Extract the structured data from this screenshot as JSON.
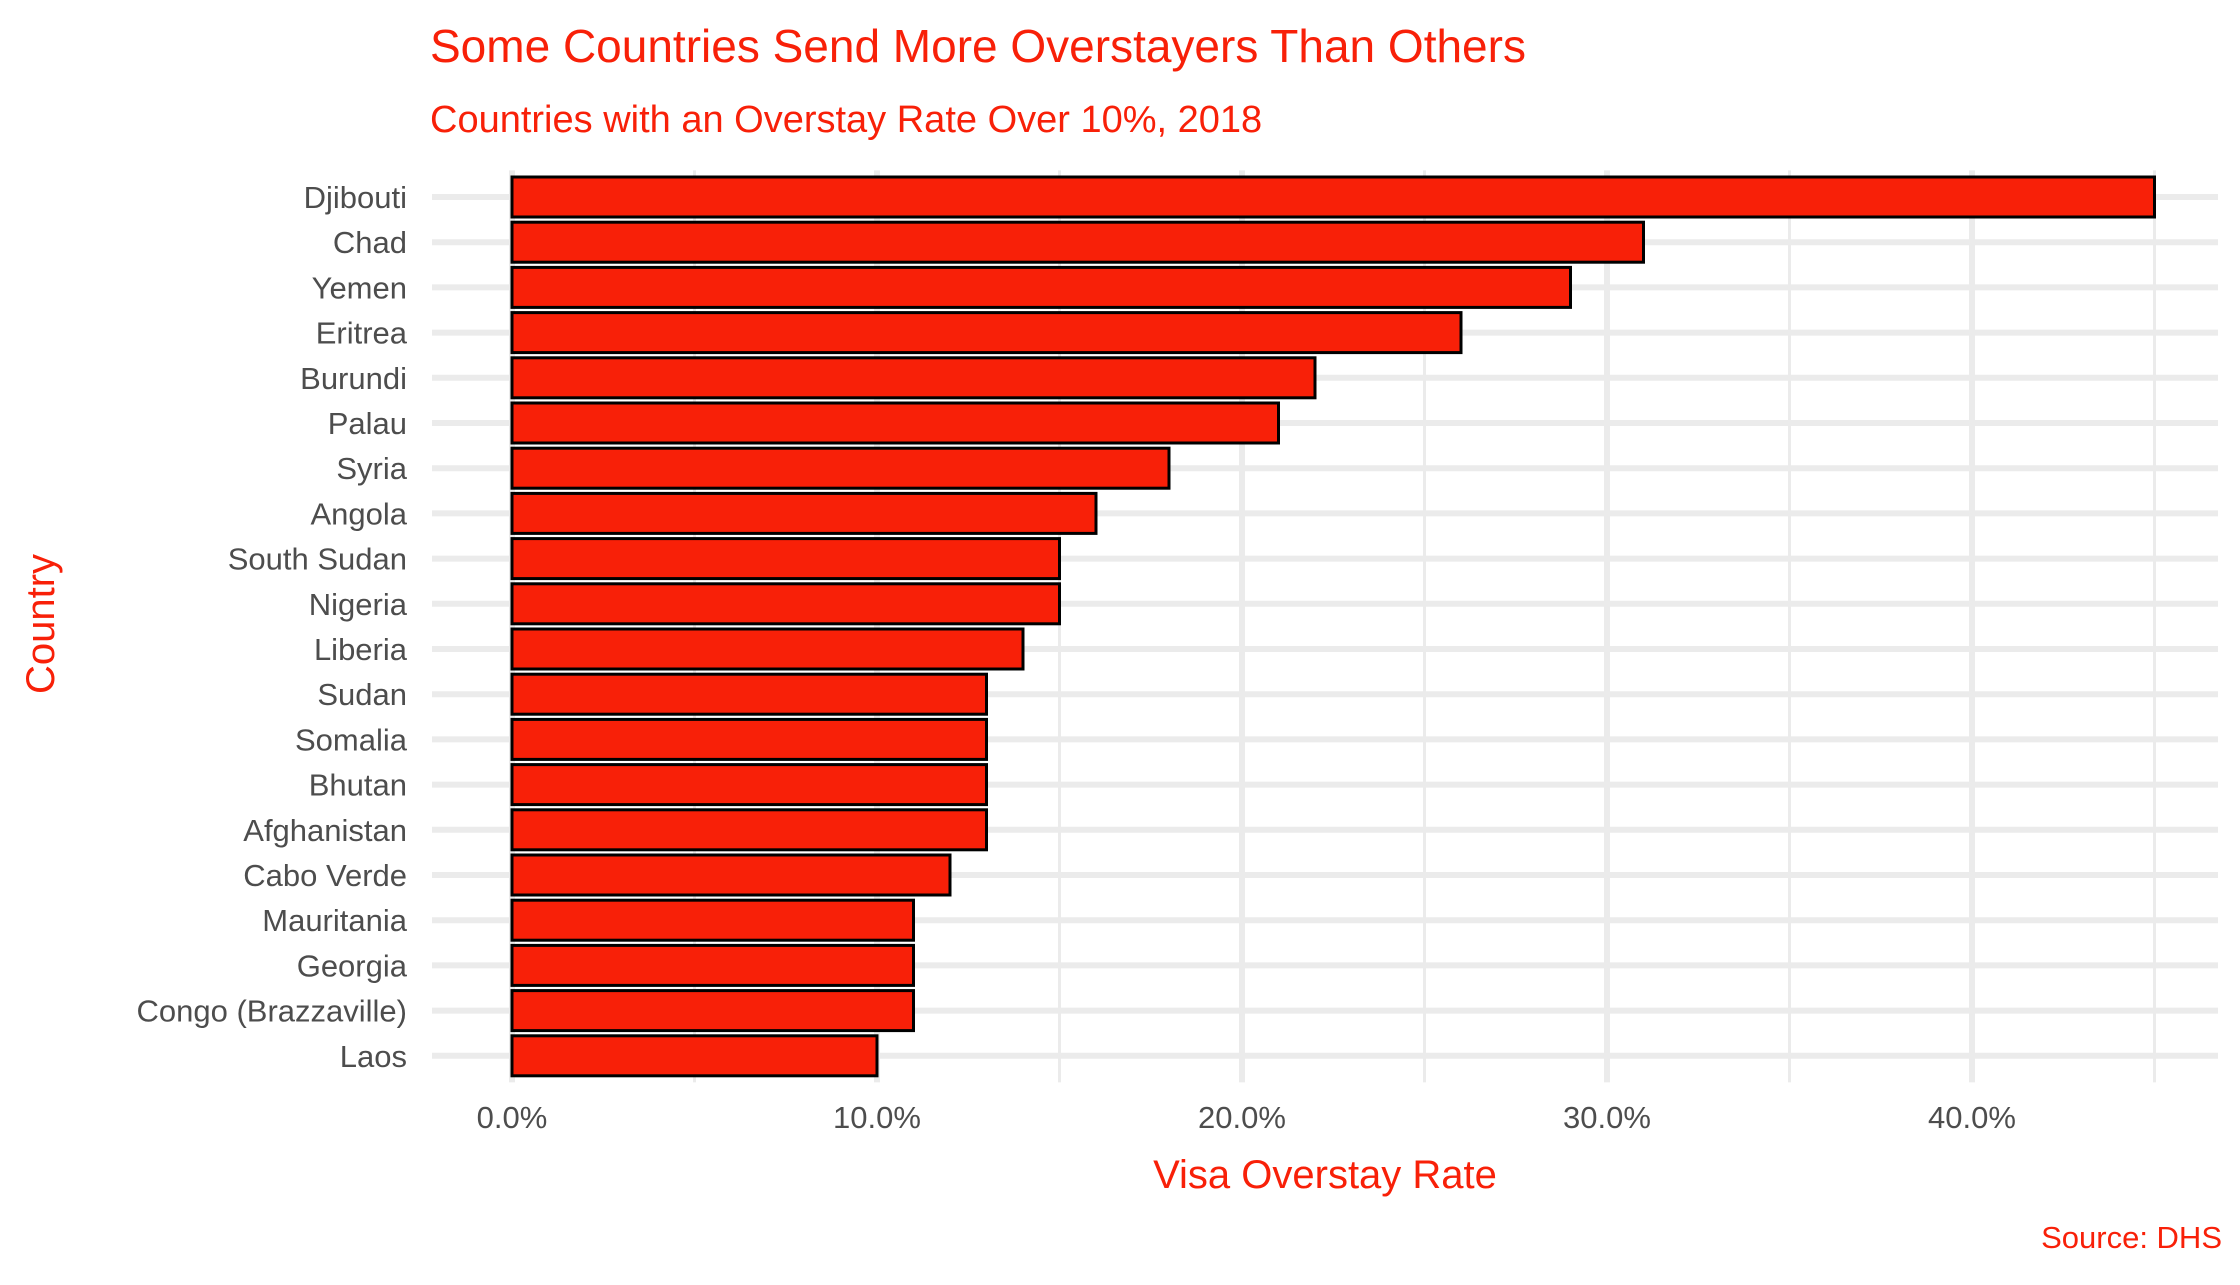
{
  "colors": {
    "accent": "#F82008",
    "bar_fill": "#F82008",
    "bar_stroke": "#000000",
    "gridline": "#EBEBEB",
    "tick_text": "#4D4D4D"
  },
  "chart_data": {
    "type": "bar",
    "orientation": "horizontal",
    "title": "Some Countries Send More Overstayers Than Others",
    "subtitle": "Countries with an Overstay Rate Over 10%, 2018",
    "xlabel": "Visa Overstay Rate",
    "ylabel": "Country",
    "caption": "Source: DHS",
    "categories": [
      "Djibouti",
      "Chad",
      "Yemen",
      "Eritrea",
      "Burundi",
      "Palau",
      "Syria",
      "Angola",
      "South Sudan",
      "Nigeria",
      "Liberia",
      "Sudan",
      "Somalia",
      "Bhutan",
      "Afghanistan",
      "Cabo Verde",
      "Mauritania",
      "Georgia",
      "Congo (Brazzaville)",
      "Laos"
    ],
    "values": [
      45,
      31,
      29,
      26,
      22,
      21,
      18,
      16,
      15,
      15,
      14,
      13,
      13,
      13,
      13,
      12,
      11,
      11,
      11,
      10
    ],
    "xlim": [
      0,
      46.2
    ],
    "xticks": [
      0,
      10,
      20,
      30,
      40
    ],
    "xtick_labels": [
      "0.0%",
      "10.0%",
      "20.0%",
      "30.0%",
      "40.0%"
    ],
    "grid": true,
    "legend": "none"
  }
}
